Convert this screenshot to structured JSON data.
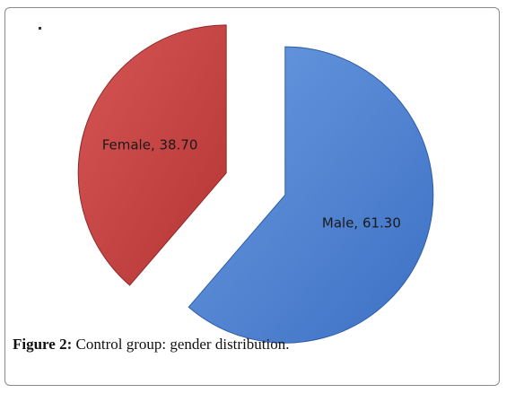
{
  "chart_data": {
    "type": "pie",
    "slices": [
      {
        "label": "Male",
        "value": 61.3,
        "display": "Male, 61.30",
        "color": "#4a7fd0",
        "edge": "#2f5da6"
      },
      {
        "label": "Female",
        "value": 38.7,
        "display": "Female, 38.70",
        "color": "#c94343",
        "edge": "#8f2a2a"
      }
    ],
    "exploded": true,
    "title": ""
  },
  "caption": {
    "figure_label": "Figure 2:",
    "text": " Control group: gender distribution."
  }
}
